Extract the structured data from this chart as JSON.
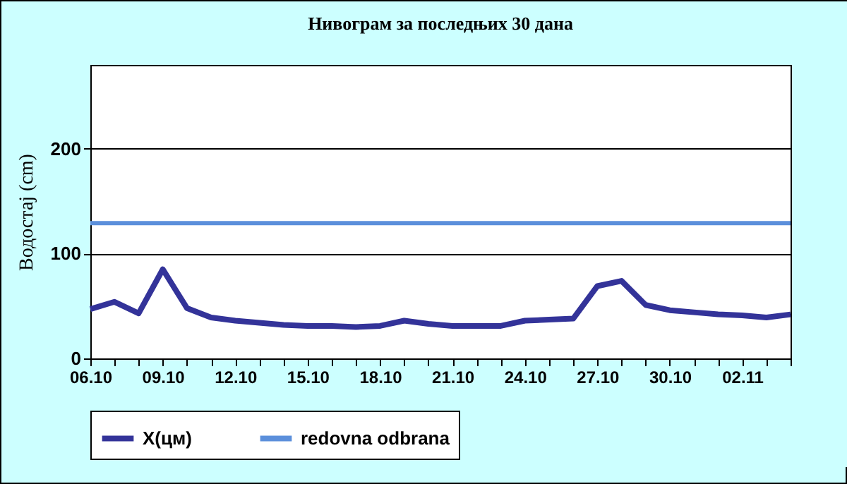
{
  "chart_data": {
    "type": "line",
    "title": "Нивограм за последњих 30 дана",
    "ylabel": "Водостај (cm)",
    "categories": [
      "06.10",
      null,
      null,
      "09.10",
      null,
      null,
      "12.10",
      null,
      null,
      "15.10",
      null,
      null,
      "18.10",
      null,
      null,
      "21.10",
      null,
      null,
      "24.10",
      null,
      null,
      "27.10",
      null,
      null,
      "30.10",
      null,
      null,
      "02.11",
      null,
      null
    ],
    "series": [
      {
        "name": "X(цм)",
        "color": "#333399",
        "values": [
          47,
          54,
          43,
          85,
          48,
          39,
          36,
          34,
          32,
          31,
          31,
          30,
          31,
          36,
          33,
          31,
          31,
          31,
          36,
          37,
          38,
          69,
          74,
          51,
          46,
          44,
          42,
          41,
          39,
          42
        ]
      }
    ],
    "ref_lines": [
      {
        "axis": "y",
        "value": 129,
        "label": "redovna odbrana",
        "color": "#5b8fdb"
      }
    ],
    "ylim": [
      0,
      280
    ],
    "yticks": [
      0,
      100,
      200
    ],
    "grid": "y",
    "legend": "bottom",
    "line_style": "solid",
    "marker": "none"
  }
}
